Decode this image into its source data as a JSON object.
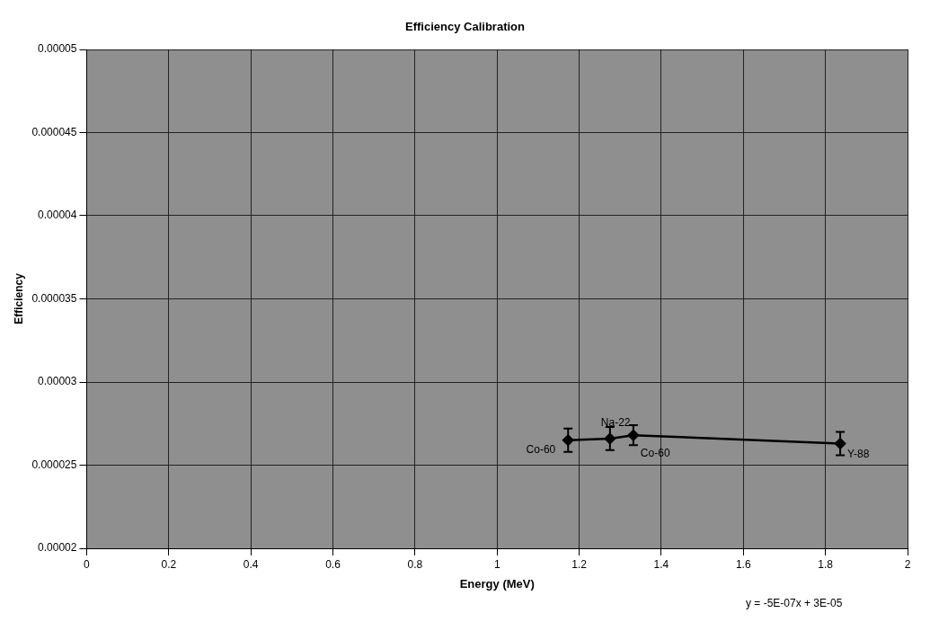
{
  "chart_data": {
    "type": "line",
    "title": "Efficiency Calibration",
    "xlabel": "Energy (MeV)",
    "ylabel": "Efficiency",
    "x": [
      1.173,
      1.275,
      1.332,
      1.836
    ],
    "series": [
      {
        "color": "#000000",
        "values": [
          2.65e-05,
          2.66e-05,
          2.68e-05,
          2.63e-05
        ],
        "errors": [
          7e-07,
          7e-07,
          6e-07,
          7e-07
        ]
      }
    ],
    "xlim": [
      0,
      2
    ],
    "xticks": [
      0,
      0.2,
      0.4,
      0.6,
      0.8,
      1,
      1.2,
      1.4,
      1.6,
      1.8,
      2
    ],
    "ylim": [
      2e-05,
      5e-05
    ],
    "yticks": [
      {
        "value": 2e-05,
        "label": "0.00002"
      },
      {
        "value": 2.5e-05,
        "label": "0.000025"
      },
      {
        "value": 3e-05,
        "label": "0.00003"
      },
      {
        "value": 3.5e-05,
        "label": "0.000035"
      },
      {
        "value": 4e-05,
        "label": "0.00004"
      },
      {
        "value": 4.5e-05,
        "label": "0.000045"
      },
      {
        "value": 5e-05,
        "label": "0.00005"
      }
    ],
    "annotations": [
      {
        "text": "Co-60",
        "x": 1.173,
        "y": 2.65e-05
      },
      {
        "text": "Na-22",
        "x": 1.275,
        "y": 2.66e-05
      },
      {
        "text": "Co-60",
        "x": 1.332,
        "y": 2.68e-05
      },
      {
        "text": "Y-88",
        "x": 1.836,
        "y": 2.63e-05
      },
      "y = -5E-07x + 3E-05"
    ],
    "grid": true,
    "legend": false,
    "marker": "diamond",
    "line_style": "solid"
  }
}
